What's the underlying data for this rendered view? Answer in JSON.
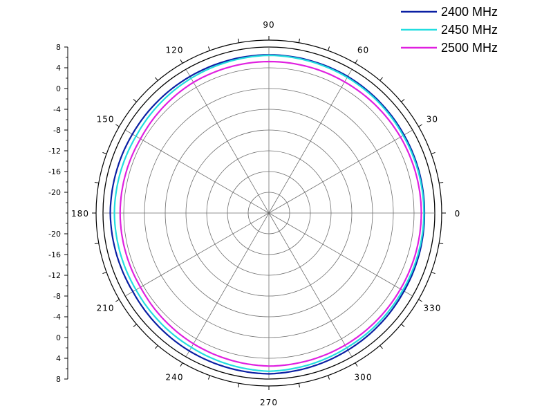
{
  "chart_data": {
    "type": "polar-line",
    "title": "",
    "radial_axis": {
      "min": -24,
      "max": 8,
      "step": 4,
      "upper_tick_labels": [
        "8",
        "4",
        "0",
        "-4",
        "-8",
        "-12",
        "-16",
        "-20"
      ],
      "lower_tick_labels": [
        "-20",
        "-16",
        "-12",
        "-8",
        "-4",
        "0",
        "4",
        "8"
      ]
    },
    "angular_axis": {
      "labels": [
        "0",
        "30",
        "60",
        "90",
        "120",
        "150",
        "180",
        "210",
        "240",
        "270",
        "300",
        "330"
      ],
      "step_deg": 30
    },
    "grid": true,
    "legend": {
      "placement": "top-right"
    },
    "series": [
      {
        "name": "2400 MHz",
        "color": "#0a1fa3",
        "angles": [
          0,
          30,
          60,
          90,
          120,
          150,
          180,
          210,
          240,
          270,
          300,
          330
        ],
        "values": [
          6.0,
          6.1,
          6.4,
          6.5,
          6.4,
          6.4,
          6.6,
          6.3,
          6.7,
          7.0,
          6.5,
          6.1
        ]
      },
      {
        "name": "2450 MHz",
        "color": "#22dde0",
        "angles": [
          0,
          30,
          60,
          90,
          120,
          150,
          180,
          210,
          240,
          270,
          300,
          330
        ],
        "values": [
          5.9,
          5.9,
          6.2,
          6.4,
          6.0,
          5.6,
          5.8,
          5.6,
          5.9,
          6.5,
          6.0,
          5.8
        ]
      },
      {
        "name": "2500 MHz",
        "color": "#e020e0",
        "angles": [
          0,
          30,
          60,
          90,
          120,
          150,
          180,
          210,
          240,
          270,
          300,
          330
        ],
        "values": [
          5.4,
          5.3,
          5.2,
          5.2,
          5.1,
          4.6,
          4.7,
          4.6,
          5.1,
          5.5,
          5.4,
          5.3
        ]
      }
    ]
  }
}
